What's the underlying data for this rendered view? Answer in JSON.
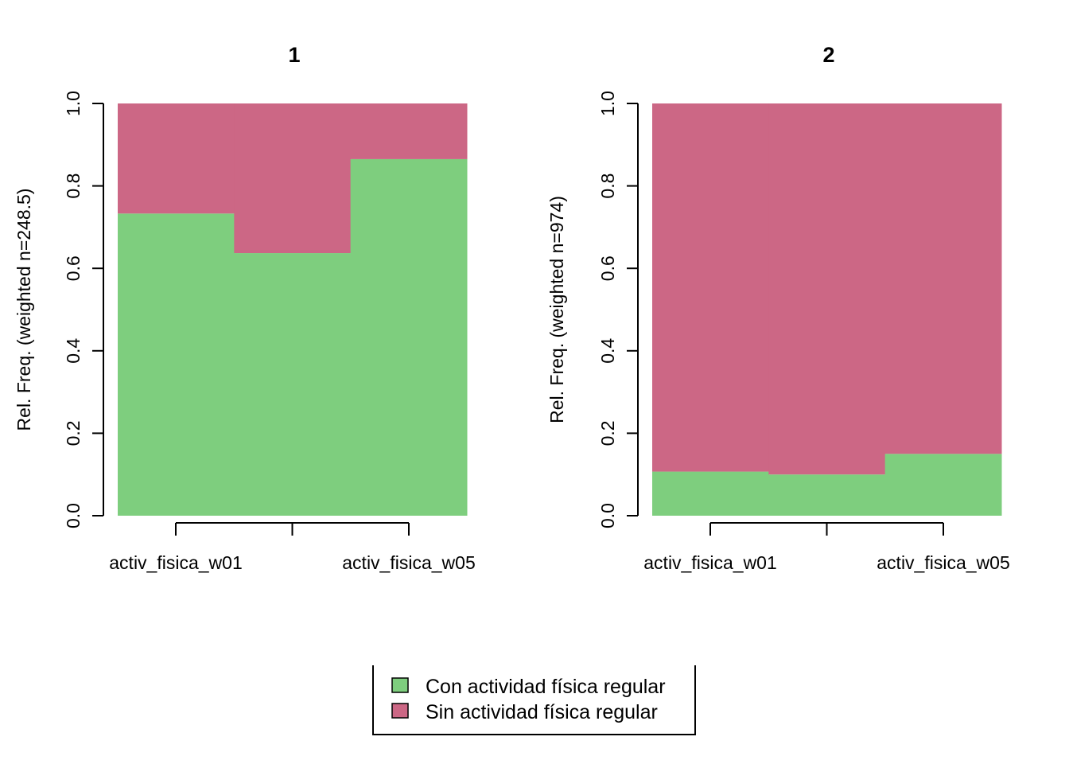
{
  "legend": {
    "items": [
      {
        "label": "Con actividad física regular",
        "color": "#7ECE7E"
      },
      {
        "label": "Sin actividad física regular",
        "color": "#CC6785"
      }
    ]
  },
  "chart_data": [
    {
      "type": "bar",
      "stacked": true,
      "title": "1",
      "ylabel": "Rel. Freq. (weighted n=248.5)",
      "ylim": [
        0,
        1
      ],
      "yticks": [
        "0.0",
        "0.2",
        "0.4",
        "0.6",
        "0.8",
        "1.0"
      ],
      "categories": [
        "activ_fisica_w01",
        "",
        "activ_fisica_w05"
      ],
      "series": [
        {
          "name": "Con actividad física regular",
          "values": [
            0.733,
            0.637,
            0.865
          ]
        },
        {
          "name": "Sin actividad física regular",
          "values": [
            0.267,
            0.363,
            0.135
          ]
        }
      ]
    },
    {
      "type": "bar",
      "stacked": true,
      "title": "2",
      "ylabel": "Rel. Freq. (weighted n=974)",
      "ylim": [
        0,
        1
      ],
      "yticks": [
        "0.0",
        "0.2",
        "0.4",
        "0.6",
        "0.8",
        "1.0"
      ],
      "categories": [
        "activ_fisica_w01",
        "",
        "activ_fisica_w05"
      ],
      "series": [
        {
          "name": "Con actividad física regular",
          "values": [
            0.107,
            0.1,
            0.15
          ]
        },
        {
          "name": "Sin actividad física regular",
          "values": [
            0.893,
            0.9,
            0.85
          ]
        }
      ]
    }
  ]
}
